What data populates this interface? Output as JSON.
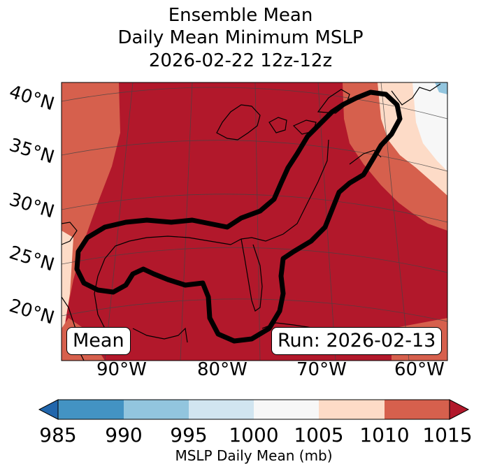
{
  "title": {
    "line1": "Ensemble Mean",
    "line2": "Daily Mean Minimum MSLP",
    "line3": "2026-02-22 12z-12z"
  },
  "map": {
    "lat_labels": [
      "40°N",
      "35°N",
      "30°N",
      "25°N",
      "20°N"
    ],
    "lon_labels": [
      "90°W",
      "80°W",
      "70°W",
      "60°W"
    ],
    "mean_label": "Mean",
    "run_label": "Run: 2026-02-13"
  },
  "colorbar": {
    "ticks": [
      "985",
      "990",
      "995",
      "1000",
      "1005",
      "1010",
      "1015"
    ],
    "label": "MSLP Daily Mean (mb)",
    "colors": [
      "#2166ac",
      "#4393c3",
      "#92c5de",
      "#d1e5f0",
      "#f7f7f7",
      "#fddbc7",
      "#d6604d",
      "#b2182b"
    ]
  }
}
